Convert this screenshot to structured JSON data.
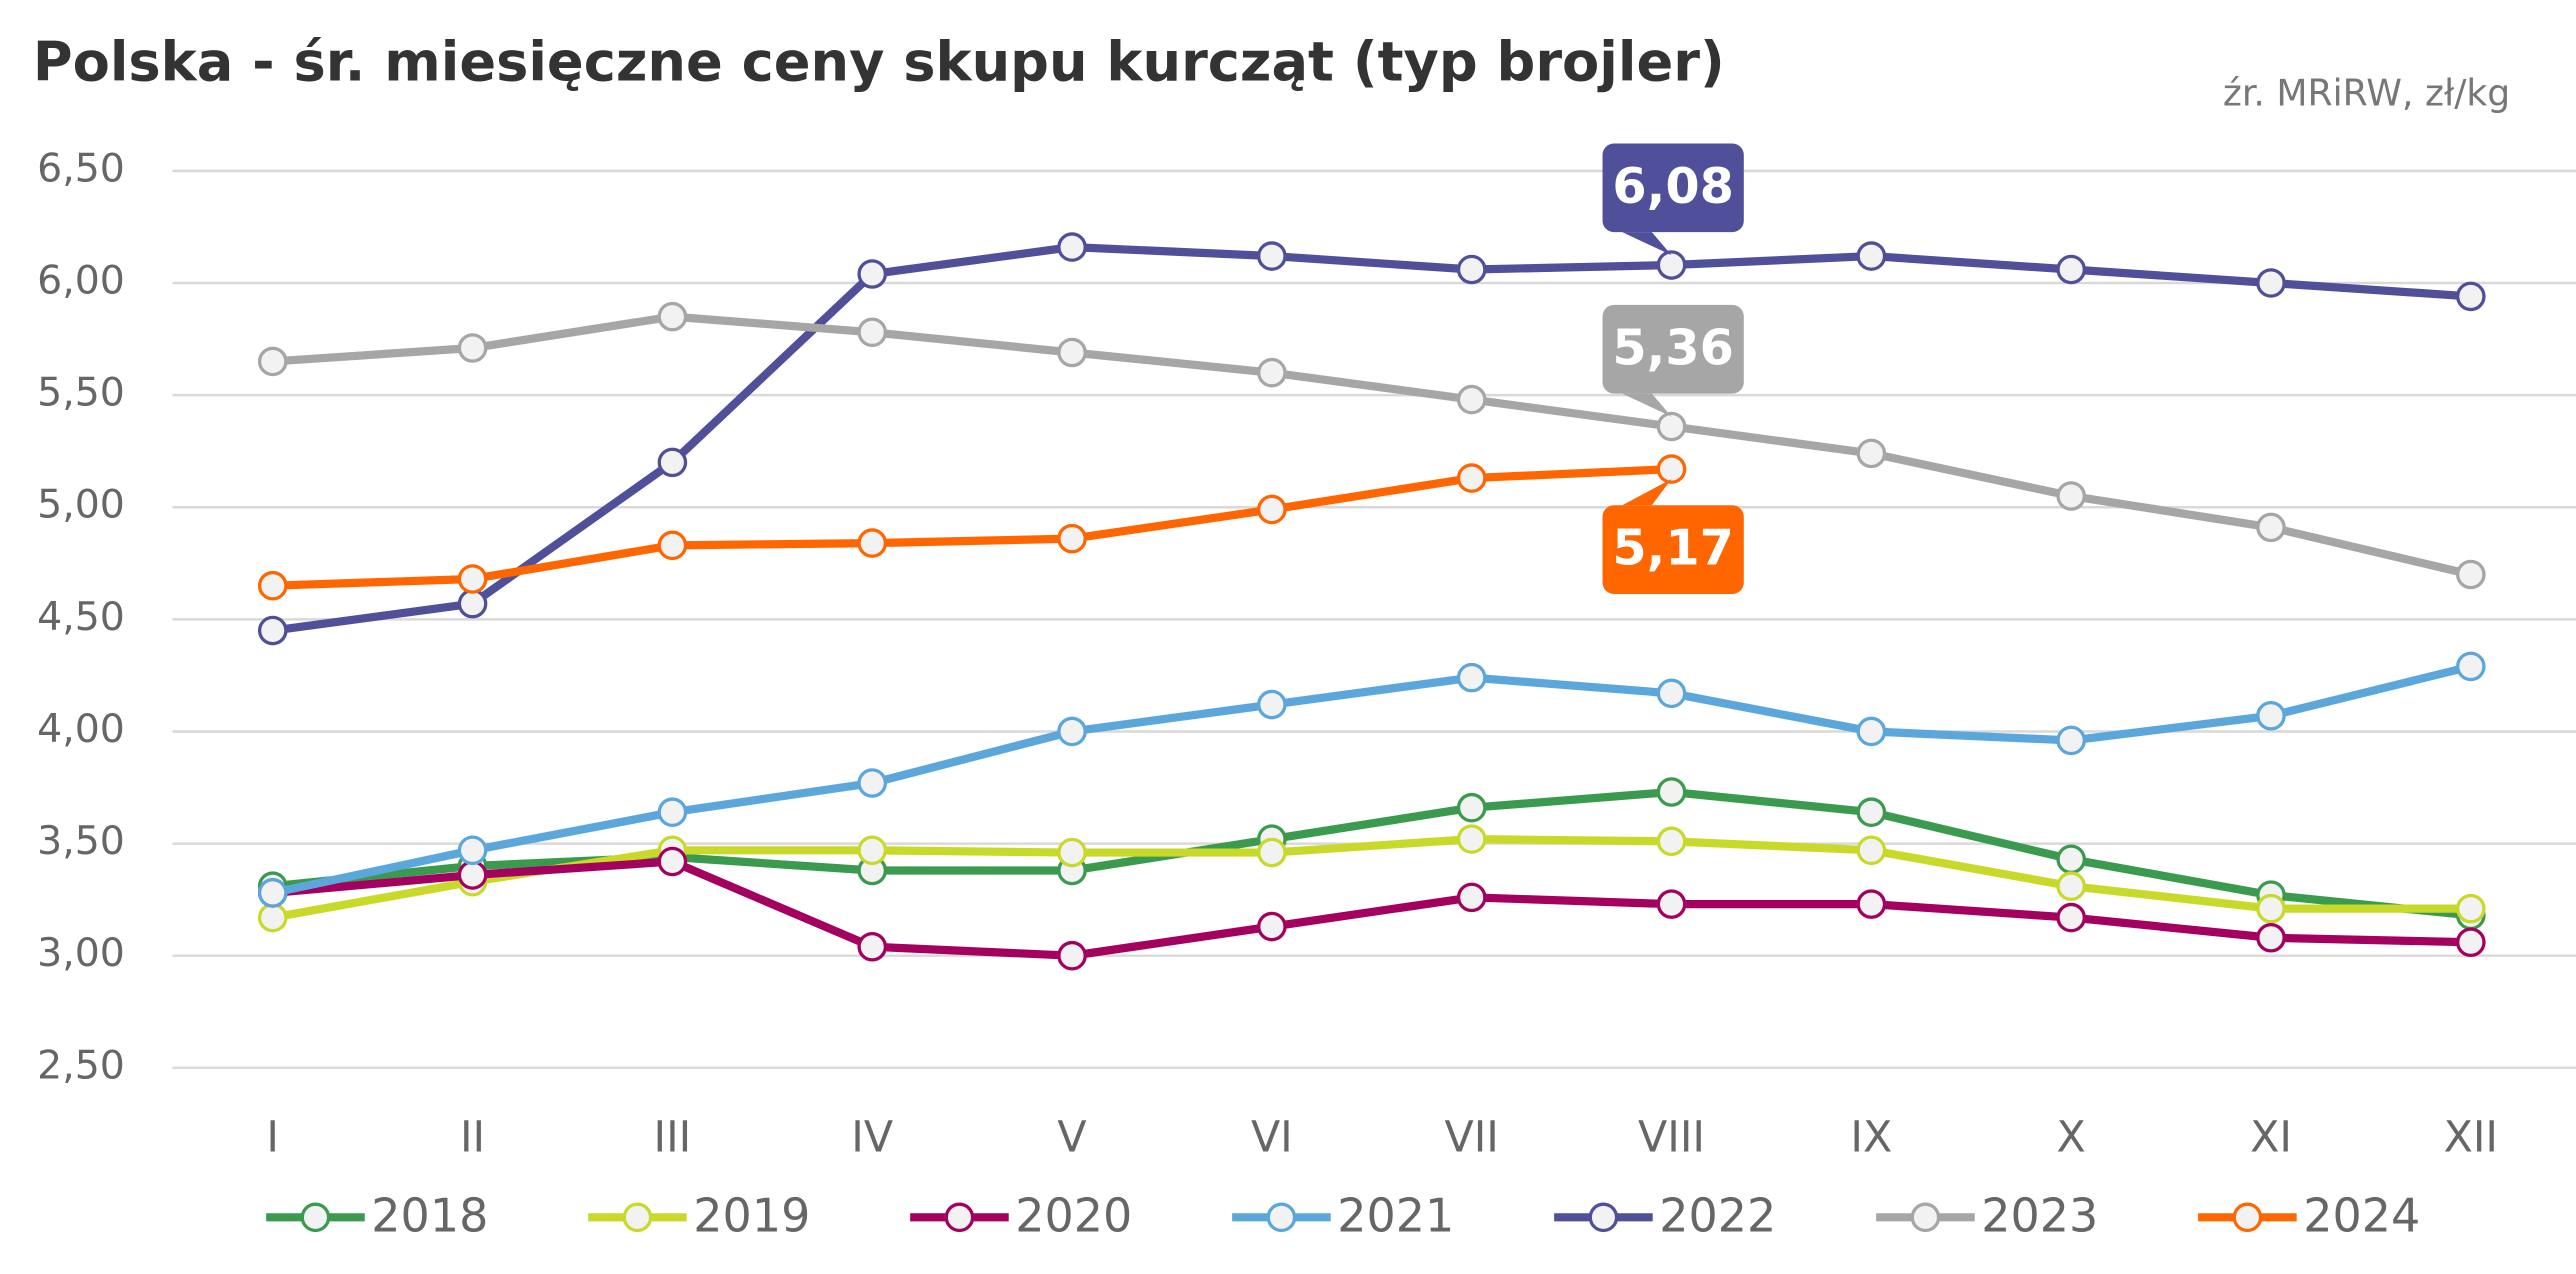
{
  "chart_data": {
    "type": "line",
    "title": "Polska - śr. miesięczne ceny skupu kurcząt (typ brojler)",
    "subtitle": "źr. MRiRW, zł/kg",
    "categories": [
      "I",
      "II",
      "III",
      "IV",
      "V",
      "VI",
      "VII",
      "VIII",
      "IX",
      "X",
      "XI",
      "XII"
    ],
    "ylim": [
      2.5,
      6.5
    ],
    "yticks": [
      {
        "value": 2.5,
        "label": "2,50"
      },
      {
        "value": 3,
        "label": "3,00"
      },
      {
        "value": 3.5,
        "label": "3,50"
      },
      {
        "value": 4,
        "label": "4,00"
      },
      {
        "value": 4.5,
        "label": "4,50"
      },
      {
        "value": 5,
        "label": "5,00"
      },
      {
        "value": 5.5,
        "label": "5,50"
      },
      {
        "value": 6,
        "label": "6,00"
      },
      {
        "value": 6.5,
        "label": "6,50"
      }
    ],
    "grid": true,
    "legend": "bottom",
    "series": [
      {
        "name": "2018",
        "color": "#3a9a4e",
        "values": [
          3.31,
          3.4,
          3.44,
          3.38,
          3.38,
          3.52,
          3.66,
          3.73,
          3.64,
          3.43,
          3.27,
          3.18
        ]
      },
      {
        "name": "2019",
        "color": "#c8d92a",
        "values": [
          3.17,
          3.33,
          3.47,
          3.47,
          3.46,
          3.46,
          3.52,
          3.51,
          3.47,
          3.31,
          3.21,
          3.21
        ]
      },
      {
        "name": "2020",
        "color": "#a3005f",
        "values": [
          3.28,
          3.36,
          3.42,
          3.04,
          3.0,
          3.13,
          3.26,
          3.23,
          3.23,
          3.17,
          3.08,
          3.06
        ]
      },
      {
        "name": "2021",
        "color": "#5ba7dc",
        "values": [
          3.28,
          3.47,
          3.64,
          3.77,
          4.0,
          4.12,
          4.24,
          4.17,
          4.0,
          3.96,
          4.07,
          4.29
        ]
      },
      {
        "name": "2022",
        "color": "#4f4f9a",
        "values": [
          4.45,
          4.57,
          5.2,
          6.04,
          6.16,
          6.12,
          6.06,
          6.08,
          6.12,
          6.06,
          6.0,
          5.94
        ],
        "value_labels": [
          null,
          null,
          null,
          null,
          null,
          null,
          null,
          "6,08",
          null,
          null,
          null,
          null
        ]
      },
      {
        "name": "2023",
        "color": "#a6a6a6",
        "values": [
          5.65,
          5.71,
          5.85,
          5.78,
          5.69,
          5.6,
          5.48,
          5.36,
          5.24,
          5.05,
          4.91,
          4.7
        ],
        "value_labels": [
          null,
          null,
          null,
          null,
          null,
          null,
          null,
          "5,36",
          null,
          null,
          null,
          null
        ]
      },
      {
        "name": "2024",
        "color": "#ff6600",
        "values": [
          4.65,
          4.68,
          4.83,
          4.84,
          4.86,
          4.99,
          5.13,
          5.17,
          null,
          null,
          null,
          null
        ],
        "value_labels": [
          null,
          null,
          null,
          null,
          null,
          null,
          null,
          "5,17",
          null,
          null,
          null,
          null
        ]
      }
    ]
  }
}
